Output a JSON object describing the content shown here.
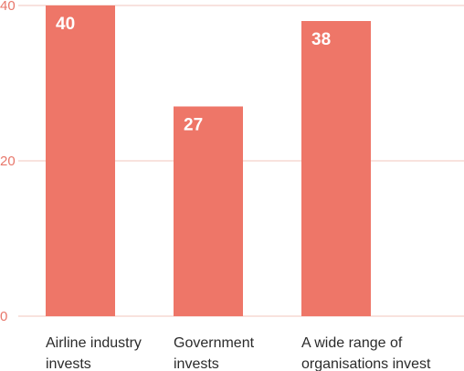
{
  "chart_data": {
    "type": "bar",
    "categories": [
      [
        "Airline industry",
        "invests"
      ],
      [
        "Government",
        "invests"
      ],
      [
        "A wide range of",
        "organisations invest"
      ]
    ],
    "values": [
      40,
      27,
      38
    ],
    "value_labels": [
      "40",
      "27",
      "38"
    ],
    "ylim": [
      0,
      40
    ],
    "yticks": [
      0,
      20,
      40
    ],
    "ytick_labels": [
      "0",
      "20",
      "40"
    ],
    "grid": true,
    "colors": {
      "bar": "#ee7668",
      "tick_text": "#e8776b",
      "grid": "#f2c4bd",
      "category_text": "#2b2b2b",
      "value_text": "#ffffff"
    }
  }
}
